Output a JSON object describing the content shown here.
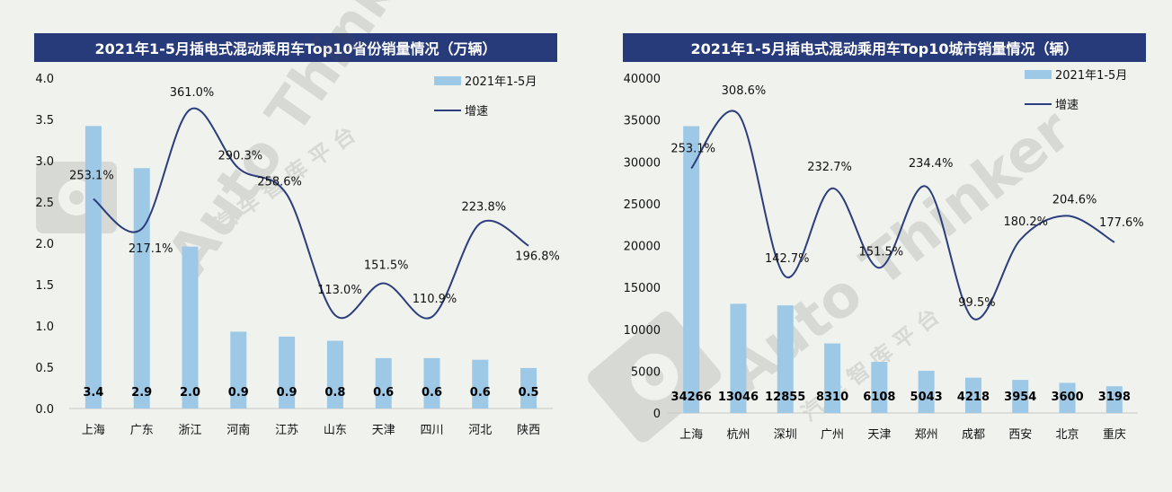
{
  "colors": {
    "bar": "#9dc8e6",
    "line": "#2b3d7c",
    "title_bg": "#273a7a",
    "background": "#f0f2ee"
  },
  "watermark": {
    "text": "Auto Thinker",
    "sub": "汽 车 智 库 平 台"
  },
  "chart_data": [
    {
      "type": "bar",
      "title": "2021年1-5月插电式混动乘用车Top10省份销量情况（万辆）",
      "categories": [
        "上海",
        "广东",
        "浙江",
        "河南",
        "江苏",
        "山东",
        "天津",
        "四川",
        "河北",
        "陕西"
      ],
      "series": [
        {
          "name": "2021年1-5月",
          "type": "bar",
          "values": [
            3.42,
            2.91,
            1.96,
            0.93,
            0.87,
            0.82,
            0.61,
            0.61,
            0.59,
            0.49
          ],
          "labels": [
            "3.4",
            "2.9",
            "2.0",
            "0.9",
            "0.9",
            "0.8",
            "0.6",
            "0.6",
            "0.6",
            "0.5"
          ]
        },
        {
          "name": "增速",
          "type": "line",
          "values": [
            253.1,
            217.1,
            361.0,
            290.3,
            258.6,
            113.0,
            151.5,
            110.9,
            223.8,
            196.8
          ],
          "labels": [
            "253.1%",
            "217.1%",
            "361.0%",
            "290.3%",
            "258.6%",
            "113.0%",
            "151.5%",
            "110.9%",
            "223.8%",
            "196.8%"
          ]
        }
      ],
      "ylim": [
        0,
        4.0
      ],
      "yticks": [
        "0.0",
        "0.5",
        "1.0",
        "1.5",
        "2.0",
        "2.5",
        "3.0",
        "3.5",
        "4.0"
      ],
      "legend": "top-right",
      "grid": false
    },
    {
      "type": "bar",
      "title": "2021年1-5月插电式混动乘用车Top10城市销量情况（辆）",
      "categories": [
        "上海",
        "杭州",
        "深圳",
        "广州",
        "天津",
        "郑州",
        "成都",
        "西安",
        "北京",
        "重庆"
      ],
      "series": [
        {
          "name": "2021年1-5月",
          "type": "bar",
          "values": [
            34266,
            13046,
            12855,
            8310,
            6108,
            5043,
            4218,
            3954,
            3600,
            3198
          ],
          "labels": [
            "34266",
            "13046",
            "12855",
            "8310",
            "6108",
            "5043",
            "4218",
            "3954",
            "3600",
            "3198"
          ]
        },
        {
          "name": "增速",
          "type": "line",
          "values": [
            253.1,
            308.6,
            142.7,
            232.7,
            151.5,
            234.4,
            99.5,
            180.2,
            204.6,
            177.6
          ],
          "labels": [
            "253.1%",
            "308.6%",
            "142.7%",
            "232.7%",
            "151.5%",
            "234.4%",
            "99.5%",
            "180.2%",
            "204.6%",
            "177.6%"
          ]
        }
      ],
      "ylim": [
        0,
        40000
      ],
      "yticks": [
        "0",
        "5000",
        "10000",
        "15000",
        "20000",
        "25000",
        "30000",
        "35000",
        "40000"
      ],
      "legend": "top-right",
      "grid": false
    }
  ]
}
